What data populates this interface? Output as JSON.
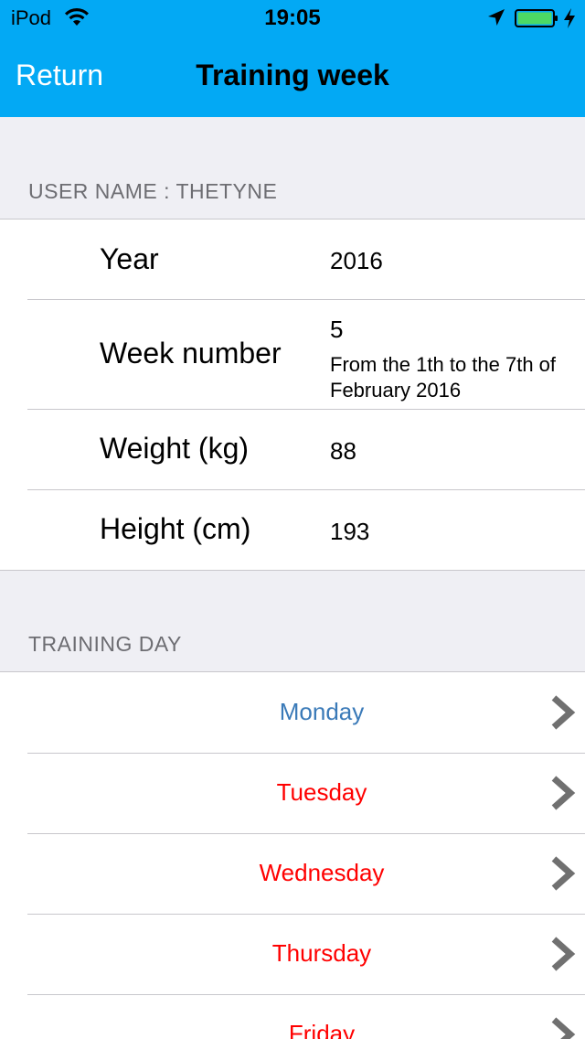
{
  "status_bar": {
    "carrier": "iPod",
    "time": "19:05",
    "icons": [
      "wifi-icon",
      "location-arrow-icon",
      "battery-icon",
      "charging-bolt-icon"
    ],
    "battery_color": "#4cd964"
  },
  "nav": {
    "return_label": "Return",
    "title": "Training week",
    "bar_color": "#03a9f4"
  },
  "user_section": {
    "header": "USER NAME : THETYNE",
    "rows": {
      "year": {
        "label": "Year",
        "value": "2016"
      },
      "week": {
        "label": "Week number",
        "value": "5",
        "detail": "From the 1th to the 7th of February 2016"
      },
      "weight": {
        "label": "Weight (kg)",
        "value": "88"
      },
      "height": {
        "label": "Height (cm)",
        "value": "193"
      }
    }
  },
  "training_section": {
    "header": "TRAINING DAY",
    "days": [
      {
        "label": "Monday",
        "color": "#3a7ab8"
      },
      {
        "label": "Tuesday",
        "color": "#ff0000"
      },
      {
        "label": "Wednesday",
        "color": "#ff0000"
      },
      {
        "label": "Thursday",
        "color": "#ff0000"
      },
      {
        "label": "Friday",
        "color": "#ff0000"
      }
    ]
  }
}
